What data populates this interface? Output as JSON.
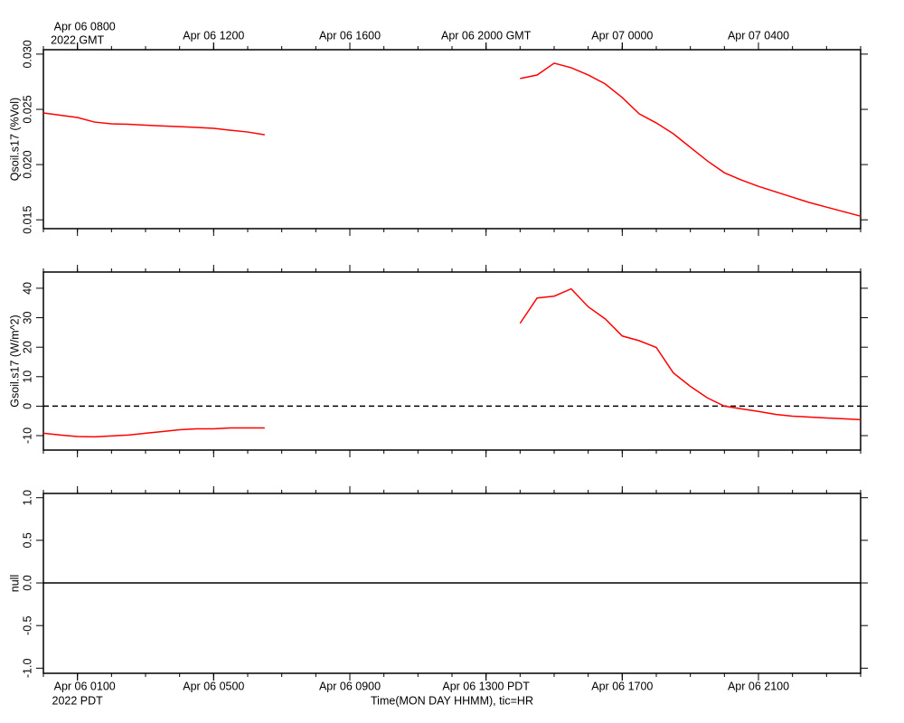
{
  "chart_data": [
    {
      "type": "line",
      "ylabel": "Qsoil.s17 (%Vol)",
      "xlim": [
        "2022-04-06 07:00",
        "2022-04-07 07:00"
      ],
      "xticks": [
        {
          "value": "2022-04-06 08:00",
          "label": "Apr 06 0800",
          "sublabel": "2022 GMT"
        },
        {
          "value": "2022-04-06 12:00",
          "label": "Apr 06 1200"
        },
        {
          "value": "2022-04-06 16:00",
          "label": "Apr 06 1600"
        },
        {
          "value": "2022-04-06 20:00",
          "label": "Apr 06 2000 GMT"
        },
        {
          "value": "2022-04-07 00:00",
          "label": "Apr 07 0000"
        },
        {
          "value": "2022-04-07 04:00",
          "label": "Apr 07 0400"
        }
      ],
      "ylim": [
        0.0142,
        0.0304
      ],
      "yticks": [
        0.015,
        {
          "value": 0.02,
          "label": "0.020"
        },
        0.025,
        {
          "value": 0.03,
          "label": "0.030"
        }
      ],
      "x": [
        "2022-04-06 07:00",
        "2022-04-06 07:30",
        "2022-04-06 08:00",
        "2022-04-06 08:30",
        "2022-04-06 09:00",
        "2022-04-06 09:30",
        "2022-04-06 10:00",
        "2022-04-06 10:30",
        "2022-04-06 11:00",
        "2022-04-06 11:30",
        "2022-04-06 12:00",
        "2022-04-06 12:30",
        "2022-04-06 13:00",
        "2022-04-06 13:30",
        "2022-04-06 14:00",
        "2022-04-06 14:30",
        "2022-04-06 15:00",
        "2022-04-06 15:30",
        "2022-04-06 16:00",
        "2022-04-06 16:30",
        "2022-04-06 17:00",
        "2022-04-06 17:30",
        "2022-04-06 18:00",
        "2022-04-06 18:30",
        "2022-04-06 19:00",
        "2022-04-06 19:30",
        "2022-04-06 20:00",
        "2022-04-06 20:30",
        "2022-04-06 21:00",
        "2022-04-06 21:30",
        "2022-04-06 22:00",
        "2022-04-06 22:30",
        "2022-04-06 23:00",
        "2022-04-06 23:30",
        "2022-04-07 00:00",
        "2022-04-07 00:30",
        "2022-04-07 01:00",
        "2022-04-07 01:30",
        "2022-04-07 02:00",
        "2022-04-07 02:30",
        "2022-04-07 03:00",
        "2022-04-07 03:30",
        "2022-04-07 04:00",
        "2022-04-07 04:30",
        "2022-04-07 05:00",
        "2022-04-07 05:30",
        "2022-04-07 06:00",
        "2022-04-07 06:30",
        "2022-04-07 07:00"
      ],
      "series": [
        {
          "color": "#ff0000",
          "values": [
            0.02467,
            0.02447,
            0.02426,
            0.02385,
            0.02369,
            0.02365,
            0.02357,
            0.0235,
            0.02344,
            0.02336,
            0.02328,
            0.02311,
            0.02295,
            0.0227,
            null,
            null,
            null,
            null,
            null,
            null,
            null,
            null,
            null,
            null,
            null,
            null,
            null,
            null,
            0.02779,
            0.02811,
            0.02918,
            0.02877,
            0.02811,
            0.0273,
            0.02607,
            0.02459,
            0.02377,
            0.02279,
            0.02156,
            0.02033,
            0.01926,
            0.0186,
            0.01803,
            0.01754,
            0.01705,
            0.01656,
            0.01615,
            0.01574,
            0.01533
          ]
        }
      ]
    },
    {
      "type": "line",
      "ylabel": "Gsoil.s17 (W/m^2)",
      "zero_line": "dashed",
      "xlim": [
        "2022-04-06 07:00",
        "2022-04-07 07:00"
      ],
      "ylim": [
        -14.9,
        45.5
      ],
      "yticks": [
        -10,
        0,
        10,
        20,
        30,
        40
      ],
      "x": [
        "2022-04-06 07:00",
        "2022-04-06 07:30",
        "2022-04-06 08:00",
        "2022-04-06 08:30",
        "2022-04-06 09:00",
        "2022-04-06 09:30",
        "2022-04-06 10:00",
        "2022-04-06 10:30",
        "2022-04-06 11:00",
        "2022-04-06 11:30",
        "2022-04-06 12:00",
        "2022-04-06 12:30",
        "2022-04-06 13:00",
        "2022-04-06 13:30",
        "2022-04-06 14:00",
        "2022-04-06 14:30",
        "2022-04-06 15:00",
        "2022-04-06 15:30",
        "2022-04-06 16:00",
        "2022-04-06 16:30",
        "2022-04-06 17:00",
        "2022-04-06 17:30",
        "2022-04-06 18:00",
        "2022-04-06 18:30",
        "2022-04-06 19:00",
        "2022-04-06 19:30",
        "2022-04-06 20:00",
        "2022-04-06 20:30",
        "2022-04-06 21:00",
        "2022-04-06 21:30",
        "2022-04-06 22:00",
        "2022-04-06 22:30",
        "2022-04-06 23:00",
        "2022-04-06 23:30",
        "2022-04-07 00:00",
        "2022-04-07 00:30",
        "2022-04-07 01:00",
        "2022-04-07 01:30",
        "2022-04-07 02:00",
        "2022-04-07 02:30",
        "2022-04-07 03:00",
        "2022-04-07 03:30",
        "2022-04-07 04:00",
        "2022-04-07 04:30",
        "2022-04-07 05:00",
        "2022-04-07 05:30",
        "2022-04-07 06:00",
        "2022-04-07 06:30",
        "2022-04-07 07:00"
      ],
      "series": [
        {
          "color": "#ff0000",
          "values": [
            -9.2,
            -9.8,
            -10.3,
            -10.4,
            -10.1,
            -9.8,
            -9.2,
            -8.6,
            -8,
            -7.7,
            -7.7,
            -7.4,
            -7.4,
            -7.4,
            null,
            null,
            null,
            null,
            null,
            null,
            null,
            null,
            null,
            null,
            null,
            null,
            null,
            null,
            28.1,
            36.7,
            37.3,
            39.8,
            33.7,
            29.6,
            23.8,
            22.2,
            19.9,
            11.3,
            6.7,
            2.8,
            0,
            -0.9,
            -1.8,
            -2.8,
            -3.4,
            -3.7,
            -4,
            -4.3,
            -4.6
          ]
        }
      ]
    },
    {
      "type": "line",
      "ylabel": "null",
      "zero_line": "solid",
      "xlabel": "Time(MON DAY HHMM), tic=HR",
      "xlim": [
        "2022-04-06 07:00",
        "2022-04-07 07:00"
      ],
      "xticks": [
        {
          "value": "2022-04-06 08:00",
          "label": "Apr 06 0100",
          "sublabel": "2022 PDT"
        },
        {
          "value": "2022-04-06 12:00",
          "label": "Apr 06 0500"
        },
        {
          "value": "2022-04-06 16:00",
          "label": "Apr 06 0900"
        },
        {
          "value": "2022-04-06 20:00",
          "label": "Apr 06 1300 PDT"
        },
        {
          "value": "2022-04-07 00:00",
          "label": "Apr 06 1700"
        },
        {
          "value": "2022-04-07 04:00",
          "label": "Apr 06 2100"
        }
      ],
      "ylim": [
        -1.06,
        1.05
      ],
      "yticks": [
        {
          "value": -1,
          "label": "-1.0"
        },
        -0.5,
        {
          "value": 0,
          "label": "0.0"
        },
        0.5,
        {
          "value": 1,
          "label": "1.0"
        }
      ],
      "series": []
    }
  ]
}
